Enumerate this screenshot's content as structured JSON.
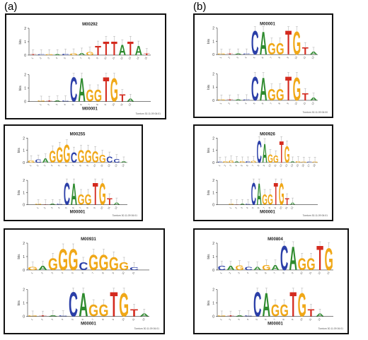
{
  "labels": {
    "a": "(a)",
    "b": "(b)"
  },
  "axis_label": "bits",
  "colors": {
    "A": "#2e8b2e",
    "C": "#2b3fa8",
    "G": "#f0a818",
    "T": "#d42a1e",
    "error": "#999999"
  },
  "panels": [
    {
      "id": "a1",
      "top": {
        "name": "M00292",
        "letters": [
          {
            "l": "T",
            "h": 0.05
          },
          {
            "l": "C",
            "h": 0.05
          },
          {
            "l": "G",
            "h": 0.06
          },
          {
            "l": "A",
            "h": 0.06
          },
          {
            "l": "C",
            "h": 0.1
          },
          {
            "l": "G",
            "h": 0.12
          },
          {
            "l": "A",
            "h": 0.18
          },
          {
            "l": "G",
            "h": 0.25
          },
          {
            "l": "T",
            "h": 0.7
          },
          {
            "l": "T",
            "h": 1.05
          },
          {
            "l": "T",
            "h": 1.05
          },
          {
            "l": "A",
            "h": 0.8
          },
          {
            "l": "T",
            "h": 1.05
          },
          {
            "l": "A",
            "h": 0.7
          },
          {
            "l": "T",
            "h": 0.15
          }
        ]
      },
      "bottom": {
        "name": "M00001",
        "letters": [
          {
            "l": "G",
            "h": 0.06
          },
          {
            "l": "T",
            "h": 0.05
          },
          {
            "l": "A",
            "h": 0.08
          },
          {
            "l": "C",
            "h": 0.08
          },
          {
            "l": "C",
            "h": 1.85
          },
          {
            "l": "A",
            "h": 1.8
          },
          {
            "l": "G",
            "h": 0.9
          },
          {
            "l": "G",
            "h": 0.9
          },
          {
            "l": "T",
            "h": 1.85
          },
          {
            "l": "G",
            "h": 1.8
          },
          {
            "l": "T",
            "h": 0.55
          },
          {
            "l": "A",
            "h": 0.2
          }
        ]
      },
      "note": "Tomtom 30.11.09 06:01"
    },
    {
      "id": "a2",
      "top": {
        "name": "M00255",
        "letters": [
          {
            "l": "G",
            "h": 0.2
          },
          {
            "l": "C",
            "h": 0.25
          },
          {
            "l": "A",
            "h": 0.35
          },
          {
            "l": "G",
            "h": 1.0
          },
          {
            "l": "G",
            "h": 1.3
          },
          {
            "l": "G",
            "h": 1.5
          },
          {
            "l": "C",
            "h": 0.9
          },
          {
            "l": "G",
            "h": 1.05
          },
          {
            "l": "G",
            "h": 1.05
          },
          {
            "l": "G",
            "h": 0.95
          },
          {
            "l": "G",
            "h": 0.65
          },
          {
            "l": "C",
            "h": 0.5
          },
          {
            "l": "C",
            "h": 0.3
          },
          {
            "l": "A",
            "h": 0.1
          }
        ]
      },
      "bottom": {
        "name": "M00001",
        "letters": [
          {
            "l": "G",
            "h": 0.06
          },
          {
            "l": "T",
            "h": 0.05
          },
          {
            "l": "A",
            "h": 0.08
          },
          {
            "l": "C",
            "h": 0.08
          },
          {
            "l": "C",
            "h": 1.85
          },
          {
            "l": "A",
            "h": 1.8
          },
          {
            "l": "G",
            "h": 0.9
          },
          {
            "l": "G",
            "h": 0.9
          },
          {
            "l": "T",
            "h": 1.85
          },
          {
            "l": "G",
            "h": 1.8
          },
          {
            "l": "T",
            "h": 0.55
          },
          {
            "l": "A",
            "h": 0.2
          }
        ]
      },
      "note": "Tomtom 30.11.09 06:01"
    },
    {
      "id": "a3",
      "top": {
        "name": "M00931",
        "letters": [
          {
            "l": "G",
            "h": 0.25
          },
          {
            "l": "A",
            "h": 0.3
          },
          {
            "l": "G",
            "h": 0.9
          },
          {
            "l": "G",
            "h": 1.6
          },
          {
            "l": "G",
            "h": 1.6
          },
          {
            "l": "C",
            "h": 0.6
          },
          {
            "l": "G",
            "h": 1.2
          },
          {
            "l": "G",
            "h": 1.2
          },
          {
            "l": "G",
            "h": 1.0
          },
          {
            "l": "G",
            "h": 0.6
          },
          {
            "l": "C",
            "h": 0.2
          }
        ]
      },
      "bottom": {
        "name": "M00001",
        "letters": [
          {
            "l": "G",
            "h": 0.06
          },
          {
            "l": "T",
            "h": 0.05
          },
          {
            "l": "A",
            "h": 0.08
          },
          {
            "l": "C",
            "h": 0.08
          },
          {
            "l": "C",
            "h": 1.85
          },
          {
            "l": "A",
            "h": 1.8
          },
          {
            "l": "G",
            "h": 0.9
          },
          {
            "l": "G",
            "h": 0.9
          },
          {
            "l": "T",
            "h": 1.85
          },
          {
            "l": "G",
            "h": 1.8
          },
          {
            "l": "T",
            "h": 0.55
          },
          {
            "l": "A",
            "h": 0.2
          }
        ]
      },
      "note": "Tomtom 30.11.09 06:01"
    },
    {
      "id": "b1",
      "top": {
        "name": "M00001",
        "letters": [
          {
            "l": "G",
            "h": 0.06
          },
          {
            "l": "T",
            "h": 0.05
          },
          {
            "l": "A",
            "h": 0.08
          },
          {
            "l": "C",
            "h": 0.08
          },
          {
            "l": "C",
            "h": 1.85
          },
          {
            "l": "A",
            "h": 1.8
          },
          {
            "l": "G",
            "h": 0.9
          },
          {
            "l": "G",
            "h": 0.9
          },
          {
            "l": "T",
            "h": 1.85
          },
          {
            "l": "G",
            "h": 1.8
          },
          {
            "l": "T",
            "h": 0.55
          },
          {
            "l": "A",
            "h": 0.2
          }
        ]
      },
      "bottom": {
        "name": "",
        "letters": [
          {
            "l": "G",
            "h": 0.06
          },
          {
            "l": "T",
            "h": 0.05
          },
          {
            "l": "A",
            "h": 0.08
          },
          {
            "l": "C",
            "h": 0.08
          },
          {
            "l": "C",
            "h": 1.85
          },
          {
            "l": "A",
            "h": 1.8
          },
          {
            "l": "G",
            "h": 0.9
          },
          {
            "l": "G",
            "h": 0.9
          },
          {
            "l": "T",
            "h": 1.85
          },
          {
            "l": "G",
            "h": 1.8
          },
          {
            "l": "T",
            "h": 0.55
          },
          {
            "l": "A",
            "h": 0.2
          }
        ]
      },
      "note": "Tomtom 30.11.09 06:00"
    },
    {
      "id": "b2",
      "top": {
        "name": "M00926",
        "letters": [
          {
            "l": "C",
            "h": 0.08
          },
          {
            "l": "G",
            "h": 0.1
          },
          {
            "l": "G",
            "h": 0.18
          },
          {
            "l": "A",
            "h": 0.12
          },
          {
            "l": "G",
            "h": 0.1
          },
          {
            "l": "C",
            "h": 0.1
          },
          {
            "l": "G",
            "h": 0.15
          },
          {
            "l": "C",
            "h": 1.85
          },
          {
            "l": "A",
            "h": 1.6
          },
          {
            "l": "G",
            "h": 0.7
          },
          {
            "l": "G",
            "h": 0.6
          },
          {
            "l": "T",
            "h": 1.8
          },
          {
            "l": "G",
            "h": 1.4
          },
          {
            "l": "A",
            "h": 0.1
          },
          {
            "l": "G",
            "h": 0.12
          },
          {
            "l": "G",
            "h": 0.08
          },
          {
            "l": "C",
            "h": 0.06
          },
          {
            "l": "G",
            "h": 0.08
          }
        ]
      },
      "bottom": {
        "name": "M00001",
        "letters": [
          {
            "l": "G",
            "h": 0.06
          },
          {
            "l": "T",
            "h": 0.05
          },
          {
            "l": "A",
            "h": 0.08
          },
          {
            "l": "C",
            "h": 0.08
          },
          {
            "l": "C",
            "h": 1.85
          },
          {
            "l": "A",
            "h": 1.8
          },
          {
            "l": "G",
            "h": 0.9
          },
          {
            "l": "G",
            "h": 0.9
          },
          {
            "l": "T",
            "h": 1.85
          },
          {
            "l": "G",
            "h": 1.8
          },
          {
            "l": "T",
            "h": 0.55
          },
          {
            "l": "A",
            "h": 0.2
          }
        ]
      },
      "note": "Tomtom 30.11.09 06:01"
    },
    {
      "id": "b3",
      "top": {
        "name": "M00804",
        "letters": [
          {
            "l": "C",
            "h": 0.3
          },
          {
            "l": "A",
            "h": 0.3
          },
          {
            "l": "G",
            "h": 0.35
          },
          {
            "l": "C",
            "h": 0.25
          },
          {
            "l": "A",
            "h": 0.25
          },
          {
            "l": "G",
            "h": 0.4
          },
          {
            "l": "A",
            "h": 0.4
          },
          {
            "l": "C",
            "h": 1.85
          },
          {
            "l": "A",
            "h": 1.8
          },
          {
            "l": "G",
            "h": 0.9
          },
          {
            "l": "G",
            "h": 0.9
          },
          {
            "l": "T",
            "h": 1.85
          },
          {
            "l": "G",
            "h": 1.7
          }
        ]
      },
      "bottom": {
        "name": "M00001",
        "letters": [
          {
            "l": "G",
            "h": 0.06
          },
          {
            "l": "T",
            "h": 0.05
          },
          {
            "l": "A",
            "h": 0.08
          },
          {
            "l": "C",
            "h": 0.08
          },
          {
            "l": "C",
            "h": 1.85
          },
          {
            "l": "A",
            "h": 1.8
          },
          {
            "l": "G",
            "h": 0.9
          },
          {
            "l": "G",
            "h": 0.9
          },
          {
            "l": "T",
            "h": 1.85
          },
          {
            "l": "G",
            "h": 1.8
          },
          {
            "l": "T",
            "h": 0.55
          },
          {
            "l": "A",
            "h": 0.2
          }
        ]
      },
      "note": "Tomtom 30.11.09 06:01"
    }
  ]
}
